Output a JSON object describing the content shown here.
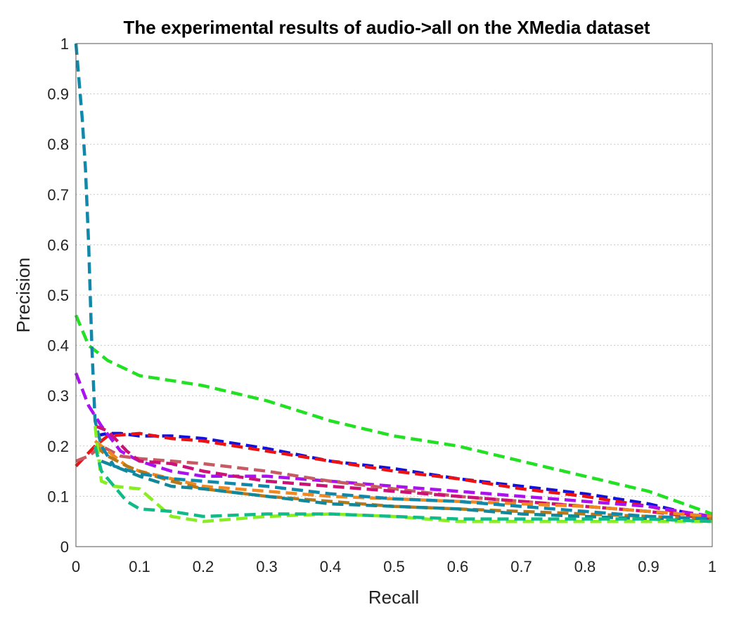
{
  "chart_data": {
    "type": "line",
    "title": "The experimental results of audio->all on the XMedia dataset",
    "xlabel": "Recall",
    "ylabel": "Precision",
    "xlim": [
      0,
      1
    ],
    "ylim": [
      0,
      1
    ],
    "grid": "horizontal dotted",
    "xticks": [
      "0",
      "0.1",
      "0.2",
      "0.3",
      "0.4",
      "0.5",
      "0.6",
      "0.7",
      "0.8",
      "0.9",
      "1"
    ],
    "yticks": [
      "0",
      "0.1",
      "0.2",
      "0.3",
      "0.4",
      "0.5",
      "0.6",
      "0.7",
      "0.8",
      "0.9",
      "1"
    ],
    "series": [
      {
        "color": "#22e022",
        "x": [
          0,
          0.02,
          0.05,
          0.1,
          0.15,
          0.2,
          0.3,
          0.4,
          0.5,
          0.6,
          0.7,
          0.8,
          0.9,
          1.0
        ],
        "y": [
          0.46,
          0.4,
          0.37,
          0.34,
          0.33,
          0.32,
          0.29,
          0.25,
          0.22,
          0.2,
          0.17,
          0.14,
          0.11,
          0.065
        ]
      },
      {
        "color": "#1111dd",
        "x": [
          0.03,
          0.05,
          0.07,
          0.1,
          0.15,
          0.2,
          0.3,
          0.4,
          0.5,
          0.6,
          0.7,
          0.8,
          0.9,
          1.0
        ],
        "y": [
          0.22,
          0.225,
          0.225,
          0.22,
          0.22,
          0.215,
          0.195,
          0.17,
          0.155,
          0.135,
          0.12,
          0.105,
          0.085,
          0.055
        ]
      },
      {
        "color": "#ee1111",
        "x": [
          0,
          0.03,
          0.05,
          0.1,
          0.15,
          0.2,
          0.3,
          0.4,
          0.5,
          0.6,
          0.7,
          0.8,
          0.9,
          1.0
        ],
        "y": [
          0.16,
          0.2,
          0.22,
          0.225,
          0.215,
          0.21,
          0.19,
          0.17,
          0.15,
          0.135,
          0.115,
          0.1,
          0.08,
          0.055
        ]
      },
      {
        "color": "#aa11ee",
        "x": [
          0,
          0.02,
          0.04,
          0.07,
          0.1,
          0.15,
          0.2,
          0.3,
          0.4,
          0.5,
          0.6,
          0.7,
          0.8,
          0.9,
          1.0
        ],
        "y": [
          0.345,
          0.28,
          0.24,
          0.19,
          0.17,
          0.15,
          0.14,
          0.14,
          0.13,
          0.12,
          0.11,
          0.1,
          0.09,
          0.08,
          0.06
        ]
      },
      {
        "color": "#c85a64",
        "x": [
          0,
          0.02,
          0.04,
          0.07,
          0.1,
          0.15,
          0.2,
          0.3,
          0.4,
          0.5,
          0.6,
          0.7,
          0.8,
          0.9,
          1.0
        ],
        "y": [
          0.17,
          0.18,
          0.2,
          0.18,
          0.175,
          0.17,
          0.165,
          0.15,
          0.13,
          0.115,
          0.1,
          0.09,
          0.08,
          0.07,
          0.06
        ]
      },
      {
        "color": "#cc1177",
        "x": [
          0.03,
          0.05,
          0.08,
          0.1,
          0.15,
          0.2,
          0.3,
          0.4,
          0.5,
          0.6,
          0.7,
          0.8,
          0.9,
          1.0
        ],
        "y": [
          0.24,
          0.23,
          0.19,
          0.17,
          0.165,
          0.15,
          0.13,
          0.12,
          0.11,
          0.1,
          0.09,
          0.08,
          0.07,
          0.055
        ]
      },
      {
        "color": "#f08820",
        "x": [
          0.03,
          0.05,
          0.08,
          0.1,
          0.15,
          0.2,
          0.3,
          0.4,
          0.5,
          0.6,
          0.7,
          0.8,
          0.9,
          1.0
        ],
        "y": [
          0.21,
          0.19,
          0.16,
          0.15,
          0.135,
          0.12,
          0.11,
          0.1,
          0.095,
          0.09,
          0.085,
          0.08,
          0.07,
          0.06
        ]
      },
      {
        "color": "#b87818",
        "x": [
          0.03,
          0.05,
          0.08,
          0.1,
          0.15,
          0.2,
          0.3,
          0.4,
          0.5,
          0.6,
          0.7,
          0.8,
          0.9,
          1.0
        ],
        "y": [
          0.2,
          0.18,
          0.16,
          0.15,
          0.13,
          0.115,
          0.1,
          0.09,
          0.08,
          0.075,
          0.07,
          0.065,
          0.06,
          0.055
        ]
      },
      {
        "color": "#1188aa",
        "x": [
          0,
          0.01,
          0.015,
          0.02,
          0.025,
          0.03,
          0.04,
          0.06,
          0.1,
          0.15,
          0.2,
          0.3,
          0.4,
          0.5,
          0.6,
          0.7,
          0.8,
          0.9,
          1.0
        ],
        "y": [
          1.0,
          0.85,
          0.75,
          0.6,
          0.4,
          0.25,
          0.2,
          0.16,
          0.145,
          0.135,
          0.13,
          0.12,
          0.105,
          0.095,
          0.09,
          0.08,
          0.07,
          0.06,
          0.055
        ]
      },
      {
        "color": "#118899",
        "x": [
          0.04,
          0.06,
          0.1,
          0.15,
          0.2,
          0.3,
          0.4,
          0.5,
          0.6,
          0.7,
          0.8,
          0.9,
          1.0
        ],
        "y": [
          0.17,
          0.16,
          0.14,
          0.12,
          0.115,
          0.1,
          0.085,
          0.08,
          0.075,
          0.065,
          0.06,
          0.055,
          0.05
        ]
      },
      {
        "color": "#88ee22",
        "x": [
          0.03,
          0.04,
          0.06,
          0.1,
          0.15,
          0.2,
          0.3,
          0.4,
          0.5,
          0.6,
          0.7,
          0.8,
          0.9,
          1.0
        ],
        "y": [
          0.24,
          0.13,
          0.12,
          0.115,
          0.06,
          0.05,
          0.06,
          0.065,
          0.06,
          0.05,
          0.05,
          0.05,
          0.05,
          0.05
        ]
      },
      {
        "color": "#11bb88",
        "x": [
          0.03,
          0.04,
          0.06,
          0.08,
          0.1,
          0.15,
          0.2,
          0.3,
          0.4,
          0.5,
          0.6,
          0.7,
          0.8,
          0.9,
          1.0
        ],
        "y": [
          0.2,
          0.15,
          0.12,
          0.09,
          0.075,
          0.07,
          0.06,
          0.065,
          0.065,
          0.06,
          0.055,
          0.055,
          0.055,
          0.055,
          0.05
        ]
      }
    ]
  }
}
